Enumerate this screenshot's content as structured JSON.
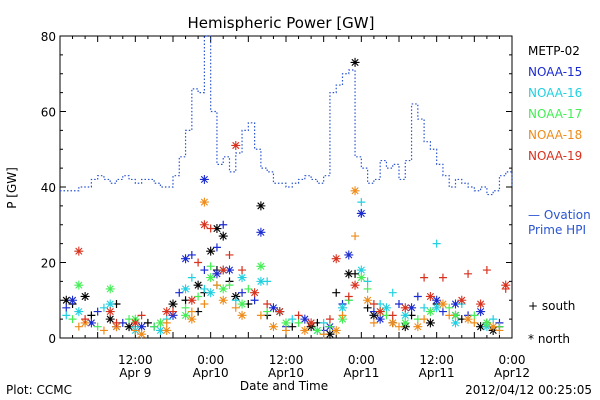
{
  "chart_data": {
    "type": "scatter",
    "title": "Hemispheric Power [GW]",
    "ylabel": "P [GW]",
    "xlabel": "Date and Time",
    "ylim": [
      0,
      80
    ],
    "yticks": [
      0,
      20,
      40,
      60,
      80
    ],
    "xlim_hours": [
      0,
      72
    ],
    "xticks": [
      {
        "hour": 12,
        "line1": "12:00",
        "line2": "Apr 9"
      },
      {
        "hour": 24,
        "line1": "0:00",
        "line2": "Apr10"
      },
      {
        "hour": 36,
        "line1": "12:00",
        "line2": "Apr10"
      },
      {
        "hour": 48,
        "line1": "0:00",
        "line2": "Apr11"
      },
      {
        "hour": 60,
        "line1": "12:00",
        "line2": "Apr11"
      },
      {
        "hour": 72,
        "line1": "0:00",
        "line2": "Apr12"
      }
    ],
    "footer_left": "Plot: CCMC",
    "footer_right": "2012/04/12 00:25:05",
    "marker_legend": {
      "south": "+ south",
      "north": "* north"
    },
    "series": [
      {
        "name": "METP-02",
        "color": "#000000",
        "south": [
          [
            2,
            9
          ],
          [
            5,
            6
          ],
          [
            9,
            9
          ],
          [
            14,
            4
          ],
          [
            20,
            10
          ],
          [
            22,
            7
          ],
          [
            23,
            12
          ],
          [
            25,
            18
          ],
          [
            27,
            15
          ],
          [
            30,
            9
          ],
          [
            33,
            6
          ],
          [
            37,
            3
          ],
          [
            41,
            4
          ],
          [
            44,
            12
          ],
          [
            47,
            17
          ],
          [
            49,
            8
          ],
          [
            53,
            4
          ],
          [
            56,
            6
          ],
          [
            60,
            9
          ],
          [
            64,
            5
          ],
          [
            68,
            4
          ],
          [
            70,
            3
          ]
        ],
        "north": [
          [
            1,
            10
          ],
          [
            4,
            11
          ],
          [
            8,
            5
          ],
          [
            11,
            3
          ],
          [
            18,
            9
          ],
          [
            22,
            14
          ],
          [
            24,
            23
          ],
          [
            25,
            29
          ],
          [
            26,
            27
          ],
          [
            28,
            11
          ],
          [
            32,
            35
          ],
          [
            35,
            7
          ],
          [
            40,
            3
          ],
          [
            43,
            1
          ],
          [
            46,
            17
          ],
          [
            47,
            73
          ],
          [
            50,
            6
          ],
          [
            55,
            3
          ],
          [
            59,
            4
          ],
          [
            63,
            6
          ],
          [
            67,
            3
          ],
          [
            69,
            2
          ]
        ]
      },
      {
        "name": "NOAA-15",
        "color": "#1a2bd0",
        "south": [
          [
            1,
            8
          ],
          [
            6,
            7
          ],
          [
            10,
            4
          ],
          [
            15,
            3
          ],
          [
            19,
            12
          ],
          [
            21,
            22
          ],
          [
            23,
            18
          ],
          [
            25,
            24
          ],
          [
            26,
            30
          ],
          [
            29,
            12
          ],
          [
            31,
            10
          ],
          [
            36,
            3
          ],
          [
            42,
            2
          ],
          [
            45,
            9
          ],
          [
            48,
            33
          ],
          [
            50,
            7
          ],
          [
            54,
            9
          ],
          [
            57,
            11
          ],
          [
            61,
            7
          ],
          [
            65,
            6
          ],
          [
            70,
            4
          ]
        ],
        "north": [
          [
            2,
            10
          ],
          [
            5,
            4
          ],
          [
            9,
            3
          ],
          [
            13,
            3
          ],
          [
            18,
            6
          ],
          [
            20,
            21
          ],
          [
            23,
            42
          ],
          [
            25,
            17
          ],
          [
            27,
            18
          ],
          [
            32,
            28
          ],
          [
            34,
            8
          ],
          [
            39,
            5
          ],
          [
            43,
            3
          ],
          [
            46,
            22
          ],
          [
            48,
            33
          ],
          [
            51,
            5
          ],
          [
            56,
            8
          ],
          [
            60,
            10
          ],
          [
            63,
            9
          ],
          [
            67,
            7
          ]
        ]
      },
      {
        "name": "NOAA-16",
        "color": "#22d0e0",
        "south": [
          [
            1,
            6
          ],
          [
            7,
            8
          ],
          [
            12,
            3
          ],
          [
            17,
            5
          ],
          [
            21,
            16
          ],
          [
            23,
            13
          ],
          [
            25,
            14
          ],
          [
            28,
            10
          ],
          [
            33,
            15
          ],
          [
            37,
            5
          ],
          [
            42,
            4
          ],
          [
            46,
            10
          ],
          [
            48,
            36
          ],
          [
            49,
            15
          ],
          [
            51,
            9
          ],
          [
            53,
            12
          ],
          [
            58,
            8
          ],
          [
            60,
            25
          ],
          [
            64,
            9
          ],
          [
            69,
            5
          ]
        ],
        "north": [
          [
            3,
            7
          ],
          [
            8,
            9
          ],
          [
            12,
            2
          ],
          [
            16,
            2
          ],
          [
            20,
            13
          ],
          [
            24,
            12
          ],
          [
            26,
            18
          ],
          [
            29,
            16
          ],
          [
            32,
            15
          ],
          [
            35,
            7
          ],
          [
            41,
            2
          ],
          [
            45,
            8
          ],
          [
            48,
            18
          ],
          [
            52,
            8
          ],
          [
            55,
            6
          ],
          [
            60,
            8
          ],
          [
            63,
            4
          ],
          [
            68,
            3
          ]
        ]
      },
      {
        "name": "NOAA-17",
        "color": "#44ee55",
        "south": [
          [
            2,
            5
          ],
          [
            6,
            3
          ],
          [
            11,
            5
          ],
          [
            15,
            3
          ],
          [
            20,
            8
          ],
          [
            22,
            11
          ],
          [
            24,
            19
          ],
          [
            27,
            14
          ],
          [
            30,
            13
          ],
          [
            33,
            7
          ],
          [
            38,
            4
          ],
          [
            43,
            3
          ],
          [
            46,
            10
          ],
          [
            49,
            13
          ],
          [
            52,
            6
          ],
          [
            57,
            5
          ],
          [
            62,
            8
          ],
          [
            66,
            6
          ],
          [
            70,
            3
          ]
        ],
        "north": [
          [
            3,
            14
          ],
          [
            8,
            13
          ],
          [
            12,
            5
          ],
          [
            16,
            4
          ],
          [
            20,
            6
          ],
          [
            24,
            16
          ],
          [
            26,
            13
          ],
          [
            29,
            9
          ],
          [
            32,
            19
          ],
          [
            36,
            4
          ],
          [
            41,
            2
          ],
          [
            45,
            5
          ],
          [
            48,
            16
          ],
          [
            51,
            7
          ],
          [
            55,
            4
          ],
          [
            59,
            7
          ],
          [
            63,
            6
          ],
          [
            68,
            4
          ]
        ]
      },
      {
        "name": "NOAA-18",
        "color": "#ee8c1a",
        "south": [
          [
            3,
            3
          ],
          [
            7,
            2
          ],
          [
            12,
            2
          ],
          [
            17,
            4
          ],
          [
            21,
            7
          ],
          [
            23,
            9
          ],
          [
            25,
            14
          ],
          [
            28,
            8
          ],
          [
            32,
            6
          ],
          [
            36,
            2
          ],
          [
            42,
            1
          ],
          [
            45,
            6
          ],
          [
            47,
            27
          ],
          [
            50,
            4
          ],
          [
            54,
            3
          ],
          [
            58,
            5
          ],
          [
            62,
            6
          ],
          [
            66,
            4
          ],
          [
            70,
            2
          ]
        ],
        "north": [
          [
            4,
            4
          ],
          [
            9,
            3
          ],
          [
            13,
            1
          ],
          [
            17,
            2
          ],
          [
            21,
            5
          ],
          [
            23,
            36
          ],
          [
            26,
            10
          ],
          [
            29,
            6
          ],
          [
            34,
            3
          ],
          [
            39,
            2
          ],
          [
            44,
            2
          ],
          [
            47,
            39
          ],
          [
            49,
            10
          ],
          [
            53,
            4
          ],
          [
            57,
            3
          ],
          [
            61,
            9
          ],
          [
            65,
            5
          ],
          [
            69,
            3
          ]
        ]
      },
      {
        "name": "NOAA-19",
        "color": "#d8321e",
        "south": [
          [
            4,
            5
          ],
          [
            9,
            4
          ],
          [
            13,
            6
          ],
          [
            18,
            7
          ],
          [
            22,
            20
          ],
          [
            24,
            29
          ],
          [
            27,
            22
          ],
          [
            29,
            18
          ],
          [
            33,
            9
          ],
          [
            38,
            6
          ],
          [
            43,
            5
          ],
          [
            46,
            11
          ],
          [
            50,
            9
          ],
          [
            53,
            6
          ],
          [
            58,
            16
          ],
          [
            61,
            16
          ],
          [
            65,
            17
          ],
          [
            68,
            18
          ],
          [
            71,
            13
          ]
        ],
        "north": [
          [
            3,
            23
          ],
          [
            8,
            7
          ],
          [
            12,
            4
          ],
          [
            17,
            7
          ],
          [
            21,
            10
          ],
          [
            23,
            30
          ],
          [
            26,
            18
          ],
          [
            28,
            51
          ],
          [
            31,
            12
          ],
          [
            35,
            7
          ],
          [
            40,
            4
          ],
          [
            44,
            21
          ],
          [
            47,
            14
          ],
          [
            51,
            7
          ],
          [
            55,
            8
          ],
          [
            59,
            11
          ],
          [
            64,
            10
          ],
          [
            67,
            9
          ],
          [
            71,
            14
          ]
        ]
      }
    ],
    "ovation": {
      "label_line1": "— Ovation",
      "label_line2": "Prime HPI",
      "color": "#2a55d0",
      "points": [
        [
          0,
          39
        ],
        [
          2,
          39
        ],
        [
          3,
          40
        ],
        [
          4,
          40
        ],
        [
          5,
          42
        ],
        [
          6,
          43
        ],
        [
          7,
          42
        ],
        [
          8,
          41
        ],
        [
          9,
          42
        ],
        [
          10,
          43
        ],
        [
          11,
          42
        ],
        [
          12,
          41
        ],
        [
          13,
          42
        ],
        [
          14,
          42
        ],
        [
          15,
          41
        ],
        [
          16,
          40
        ],
        [
          17,
          40
        ],
        [
          18,
          43
        ],
        [
          19,
          48
        ],
        [
          20,
          55
        ],
        [
          21,
          66
        ],
        [
          22,
          65
        ],
        [
          23,
          80
        ],
        [
          24,
          60
        ],
        [
          25,
          46
        ],
        [
          26,
          48
        ],
        [
          27,
          44
        ],
        [
          28,
          49
        ],
        [
          29,
          55
        ],
        [
          30,
          57
        ],
        [
          31,
          50
        ],
        [
          32,
          45
        ],
        [
          33,
          44
        ],
        [
          34,
          41
        ],
        [
          35,
          41
        ],
        [
          36,
          40
        ],
        [
          37,
          41
        ],
        [
          38,
          42
        ],
        [
          39,
          43
        ],
        [
          40,
          42
        ],
        [
          41,
          41
        ],
        [
          42,
          43
        ],
        [
          43,
          65
        ],
        [
          44,
          67
        ],
        [
          45,
          70
        ],
        [
          46,
          71
        ],
        [
          47,
          48
        ],
        [
          48,
          45
        ],
        [
          49,
          41
        ],
        [
          50,
          42
        ],
        [
          51,
          47
        ],
        [
          52,
          45
        ],
        [
          53,
          46
        ],
        [
          54,
          42
        ],
        [
          55,
          47
        ],
        [
          56,
          62
        ],
        [
          57,
          58
        ],
        [
          58,
          52
        ],
        [
          59,
          50
        ],
        [
          60,
          46
        ],
        [
          61,
          43
        ],
        [
          62,
          40
        ],
        [
          63,
          42
        ],
        [
          64,
          41
        ],
        [
          65,
          40
        ],
        [
          66,
          39
        ],
        [
          67,
          40
        ],
        [
          68,
          38
        ],
        [
          69,
          39
        ],
        [
          70,
          43
        ],
        [
          71,
          44
        ],
        [
          72,
          40
        ]
      ]
    }
  }
}
